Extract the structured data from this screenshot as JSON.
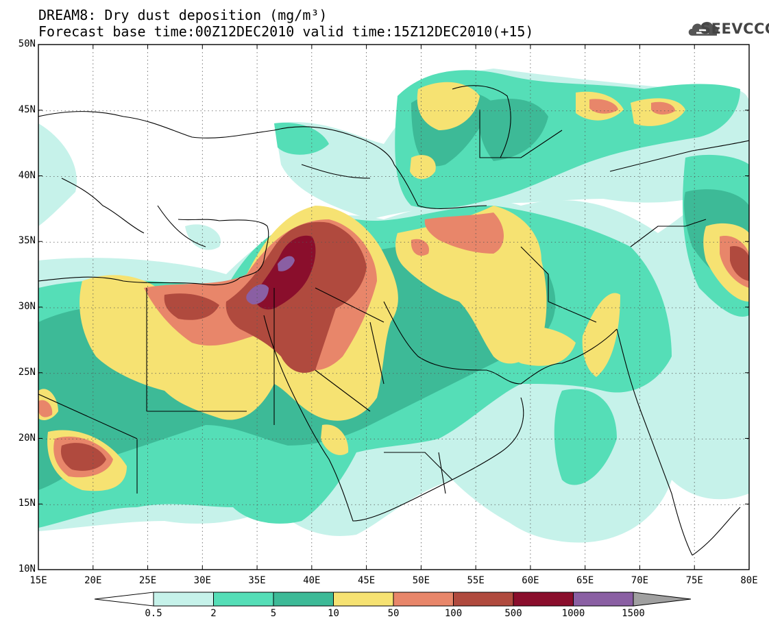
{
  "title": {
    "line1": "DREAM8: Dry dust deposition (mg/m³)",
    "line2": "Forecast base time:00Z12DEC2010 valid time:15Z12DEC2010(+15)"
  },
  "brand": {
    "text": "SEEVCCC",
    "icon": "cloud-icon"
  },
  "axes": {
    "lat_labels": [
      "50N",
      "45N",
      "40N",
      "35N",
      "30N",
      "25N",
      "20N",
      "15N",
      "10N"
    ],
    "lon_labels": [
      "15E",
      "20E",
      "25E",
      "30E",
      "35E",
      "40E",
      "45E",
      "50E",
      "55E",
      "60E",
      "65E",
      "70E",
      "75E",
      "80E"
    ],
    "lat_range": [
      10,
      50
    ],
    "lon_range": [
      15,
      80
    ],
    "grid": "dotted"
  },
  "colorbar": {
    "labels": [
      "0.5",
      "2",
      "5",
      "10",
      "50",
      "100",
      "500",
      "1000",
      "1500"
    ],
    "colors": [
      "#c6f2ea",
      "#55deb7",
      "#3dba97",
      "#f6e272",
      "#e8866a",
      "#b04a3e",
      "#8a0e2c",
      "#8a5fa3"
    ],
    "under_color": "#ffffff",
    "over_color": "#a0a0a0"
  }
}
